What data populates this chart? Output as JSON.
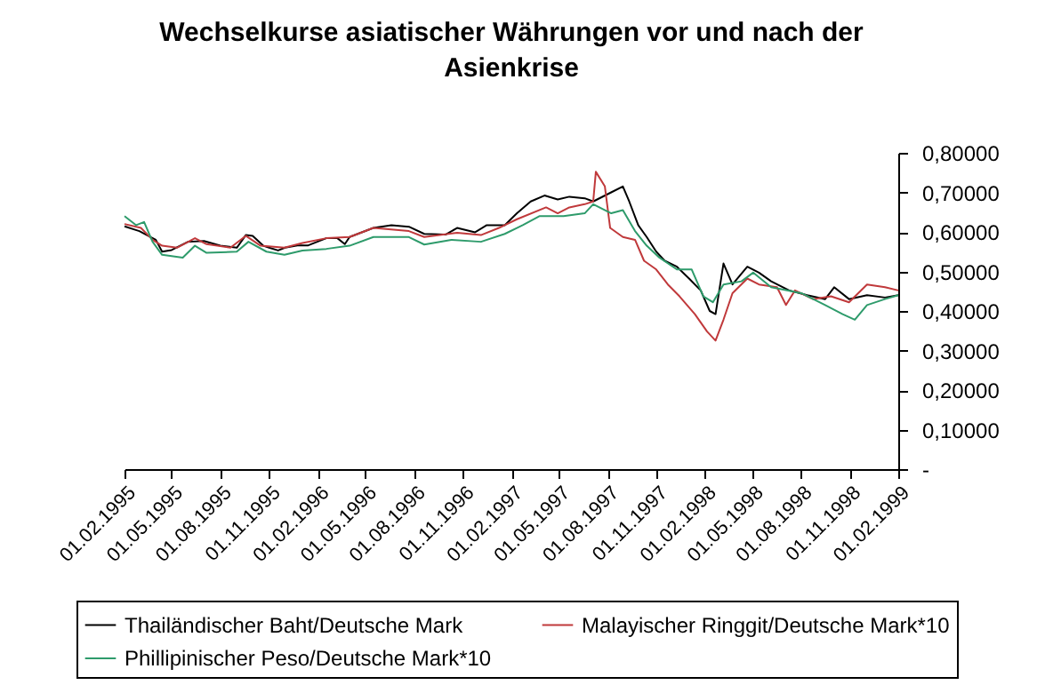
{
  "chart_data": {
    "type": "line",
    "title": "Wechselkurse asiatischer Währungen vor und nach der Asienkrise",
    "legend": "bottom",
    "marker": "none",
    "line_style": "solid",
    "grid": false,
    "xlim": [
      "1995-02-01",
      "1999-02-01"
    ],
    "xticks": [
      {
        "value": "1995-02-01",
        "label": "01.02.1995"
      },
      {
        "value": "1995-05-01",
        "label": "01.05.1995"
      },
      {
        "value": "1995-08-01",
        "label": "01.08.1995"
      },
      {
        "value": "1995-11-01",
        "label": "01.11.1995"
      },
      {
        "value": "1996-02-01",
        "label": "01.02.1996"
      },
      {
        "value": "1996-05-01",
        "label": "01.05.1996"
      },
      {
        "value": "1996-08-01",
        "label": "01.08.1996"
      },
      {
        "value": "1996-11-01",
        "label": "01.11.1996"
      },
      {
        "value": "1997-02-01",
        "label": "01.02.1997"
      },
      {
        "value": "1997-05-01",
        "label": "01.05.1997"
      },
      {
        "value": "1997-08-01",
        "label": "01.08.1997"
      },
      {
        "value": "1997-11-01",
        "label": "01.11.1997"
      },
      {
        "value": "1998-02-01",
        "label": "01.02.1998"
      },
      {
        "value": "1998-05-01",
        "label": "01.05.1998"
      },
      {
        "value": "1998-08-01",
        "label": "01.08.1998"
      },
      {
        "value": "1998-11-01",
        "label": "01.11.1998"
      },
      {
        "value": "1999-02-01",
        "label": "01.02.1999"
      }
    ],
    "ylim": [
      0,
      0.8
    ],
    "yticks": [
      {
        "value": 0,
        "label": "-"
      },
      {
        "value": 0.1,
        "label": "0,10000"
      },
      {
        "value": 0.2,
        "label": "0,20000"
      },
      {
        "value": 0.3,
        "label": "0,30000"
      },
      {
        "value": 0.4,
        "label": "0,40000"
      },
      {
        "value": 0.5,
        "label": "0,50000"
      },
      {
        "value": 0.6,
        "label": "0,60000"
      },
      {
        "value": 0.7,
        "label": "0,70000"
      },
      {
        "value": 0.8,
        "label": "0,80000"
      }
    ],
    "series": [
      {
        "name": "Thailändischer Baht/Deutsche Mark",
        "color": "#000000",
        "x": [
          "1995-02-01",
          "1995-03-01",
          "1995-04-01",
          "1995-04-13",
          "1995-05-01",
          "1995-06-01",
          "1995-07-01",
          "1995-08-01",
          "1995-09-01",
          "1995-09-18",
          "1995-10-01",
          "1995-10-21",
          "1995-11-01",
          "1995-11-18",
          "1995-12-01",
          "1995-12-27",
          "1996-01-14",
          "1996-02-17",
          "1996-03-09",
          "1996-03-23",
          "1996-04-01",
          "1996-05-16",
          "1996-06-19",
          "1996-07-22",
          "1996-08-20",
          "1996-09-29",
          "1996-10-21",
          "1996-11-24",
          "1996-12-16",
          "1997-01-19",
          "1997-02-11",
          "1997-03-09",
          "1997-04-04",
          "1997-04-29",
          "1997-05-21",
          "1997-06-19",
          "1997-07-05",
          "1997-08-08",
          "1997-08-30",
          "1997-09-11",
          "1997-09-28",
          "1997-10-14",
          "1997-11-01",
          "1997-11-17",
          "1997-12-10",
          "1998-01-02",
          "1998-01-24",
          "1998-02-10",
          "1998-02-21",
          "1998-03-08",
          "1998-03-25",
          "1998-04-22",
          "1998-05-14",
          "1998-06-06",
          "1998-07-10",
          "1998-08-13",
          "1998-09-16",
          "1998-10-03",
          "1998-10-31",
          "1998-12-04",
          "1999-01-07",
          "1999-02-01"
        ],
        "values": [
          0.614,
          0.602,
          0.58,
          0.55,
          0.554,
          0.575,
          0.577,
          0.565,
          0.56,
          0.592,
          0.59,
          0.565,
          0.56,
          0.553,
          0.56,
          0.566,
          0.566,
          0.584,
          0.584,
          0.569,
          0.587,
          0.61,
          0.617,
          0.613,
          0.595,
          0.593,
          0.61,
          0.599,
          0.617,
          0.617,
          0.647,
          0.677,
          0.692,
          0.682,
          0.689,
          0.685,
          0.677,
          0.7,
          0.715,
          0.677,
          0.617,
          0.587,
          0.55,
          0.527,
          0.512,
          0.482,
          0.452,
          0.4,
          0.392,
          0.52,
          0.467,
          0.512,
          0.497,
          0.475,
          0.452,
          0.44,
          0.43,
          0.46,
          0.43,
          0.44,
          0.434,
          0.44
        ]
      },
      {
        "name": "Malayischer Ringgit/Deutsche Mark*10",
        "color": "#c0393b",
        "x": [
          "1995-02-01",
          "1995-03-04",
          "1995-03-26",
          "1995-04-13",
          "1995-05-11",
          "1995-06-14",
          "1995-07-06",
          "1995-08-20",
          "1995-09-18",
          "1995-10-16",
          "1995-11-30",
          "1996-01-03",
          "1996-02-17",
          "1996-04-01",
          "1996-05-16",
          "1996-07-22",
          "1996-08-20",
          "1996-10-21",
          "1996-12-05",
          "1997-01-08",
          "1997-02-11",
          "1997-04-07",
          "1997-04-29",
          "1997-05-21",
          "1997-06-19",
          "1997-07-05",
          "1997-07-10",
          "1997-07-27",
          "1997-08-06",
          "1997-08-30",
          "1997-09-22",
          "1997-10-09",
          "1997-11-01",
          "1997-11-23",
          "1997-12-15",
          "1998-01-13",
          "1998-02-05",
          "1998-02-21",
          "1998-03-08",
          "1998-03-25",
          "1998-04-22",
          "1998-05-14",
          "1998-06-17",
          "1998-07-04",
          "1998-07-21",
          "1998-08-24",
          "1998-09-27",
          "1998-10-31",
          "1998-12-04",
          "1999-01-07",
          "1999-02-01"
        ],
        "values": [
          0.62,
          0.61,
          0.58,
          0.565,
          0.56,
          0.584,
          0.569,
          0.56,
          0.59,
          0.565,
          0.56,
          0.572,
          0.584,
          0.587,
          0.61,
          0.602,
          0.587,
          0.598,
          0.592,
          0.61,
          0.632,
          0.662,
          0.647,
          0.662,
          0.67,
          0.677,
          0.752,
          0.715,
          0.61,
          0.587,
          0.58,
          0.527,
          0.505,
          0.467,
          0.437,
          0.392,
          0.348,
          0.325,
          0.378,
          0.445,
          0.482,
          0.467,
          0.46,
          0.415,
          0.452,
          0.43,
          0.437,
          0.422,
          0.467,
          0.46,
          0.452
        ]
      },
      {
        "name": "Phillipinischer Peso/Deutsche Mark*10",
        "color": "#2e9b6b",
        "x": [
          "1995-02-01",
          "1995-02-23",
          "1995-03-10",
          "1995-03-26",
          "1995-04-13",
          "1995-05-22",
          "1995-06-14",
          "1995-07-06",
          "1995-09-01",
          "1995-09-23",
          "1995-10-27",
          "1995-11-30",
          "1996-01-03",
          "1996-02-17",
          "1996-04-01",
          "1996-05-16",
          "1996-07-22",
          "1996-08-20",
          "1996-10-10",
          "1996-12-05",
          "1997-01-19",
          "1997-02-22",
          "1997-03-26",
          "1997-05-10",
          "1997-06-19",
          "1997-07-05",
          "1997-08-08",
          "1997-08-30",
          "1997-09-22",
          "1997-10-14",
          "1997-11-07",
          "1997-12-10",
          "1998-01-07",
          "1998-01-29",
          "1998-02-16",
          "1998-03-08",
          "1998-04-11",
          "1998-05-03",
          "1998-06-06",
          "1998-08-02",
          "1998-09-16",
          "1998-10-19",
          "1998-11-11",
          "1998-12-04",
          "1999-01-07",
          "1999-02-01"
        ],
        "values": [
          0.64,
          0.617,
          0.625,
          0.575,
          0.542,
          0.535,
          0.565,
          0.547,
          0.55,
          0.575,
          0.55,
          0.542,
          0.553,
          0.557,
          0.565,
          0.587,
          0.587,
          0.568,
          0.58,
          0.575,
          0.595,
          0.617,
          0.64,
          0.64,
          0.647,
          0.67,
          0.647,
          0.655,
          0.602,
          0.565,
          0.535,
          0.505,
          0.505,
          0.437,
          0.422,
          0.467,
          0.475,
          0.497,
          0.46,
          0.445,
          0.415,
          0.392,
          0.378,
          0.415,
          0.43,
          0.44
        ]
      }
    ]
  }
}
